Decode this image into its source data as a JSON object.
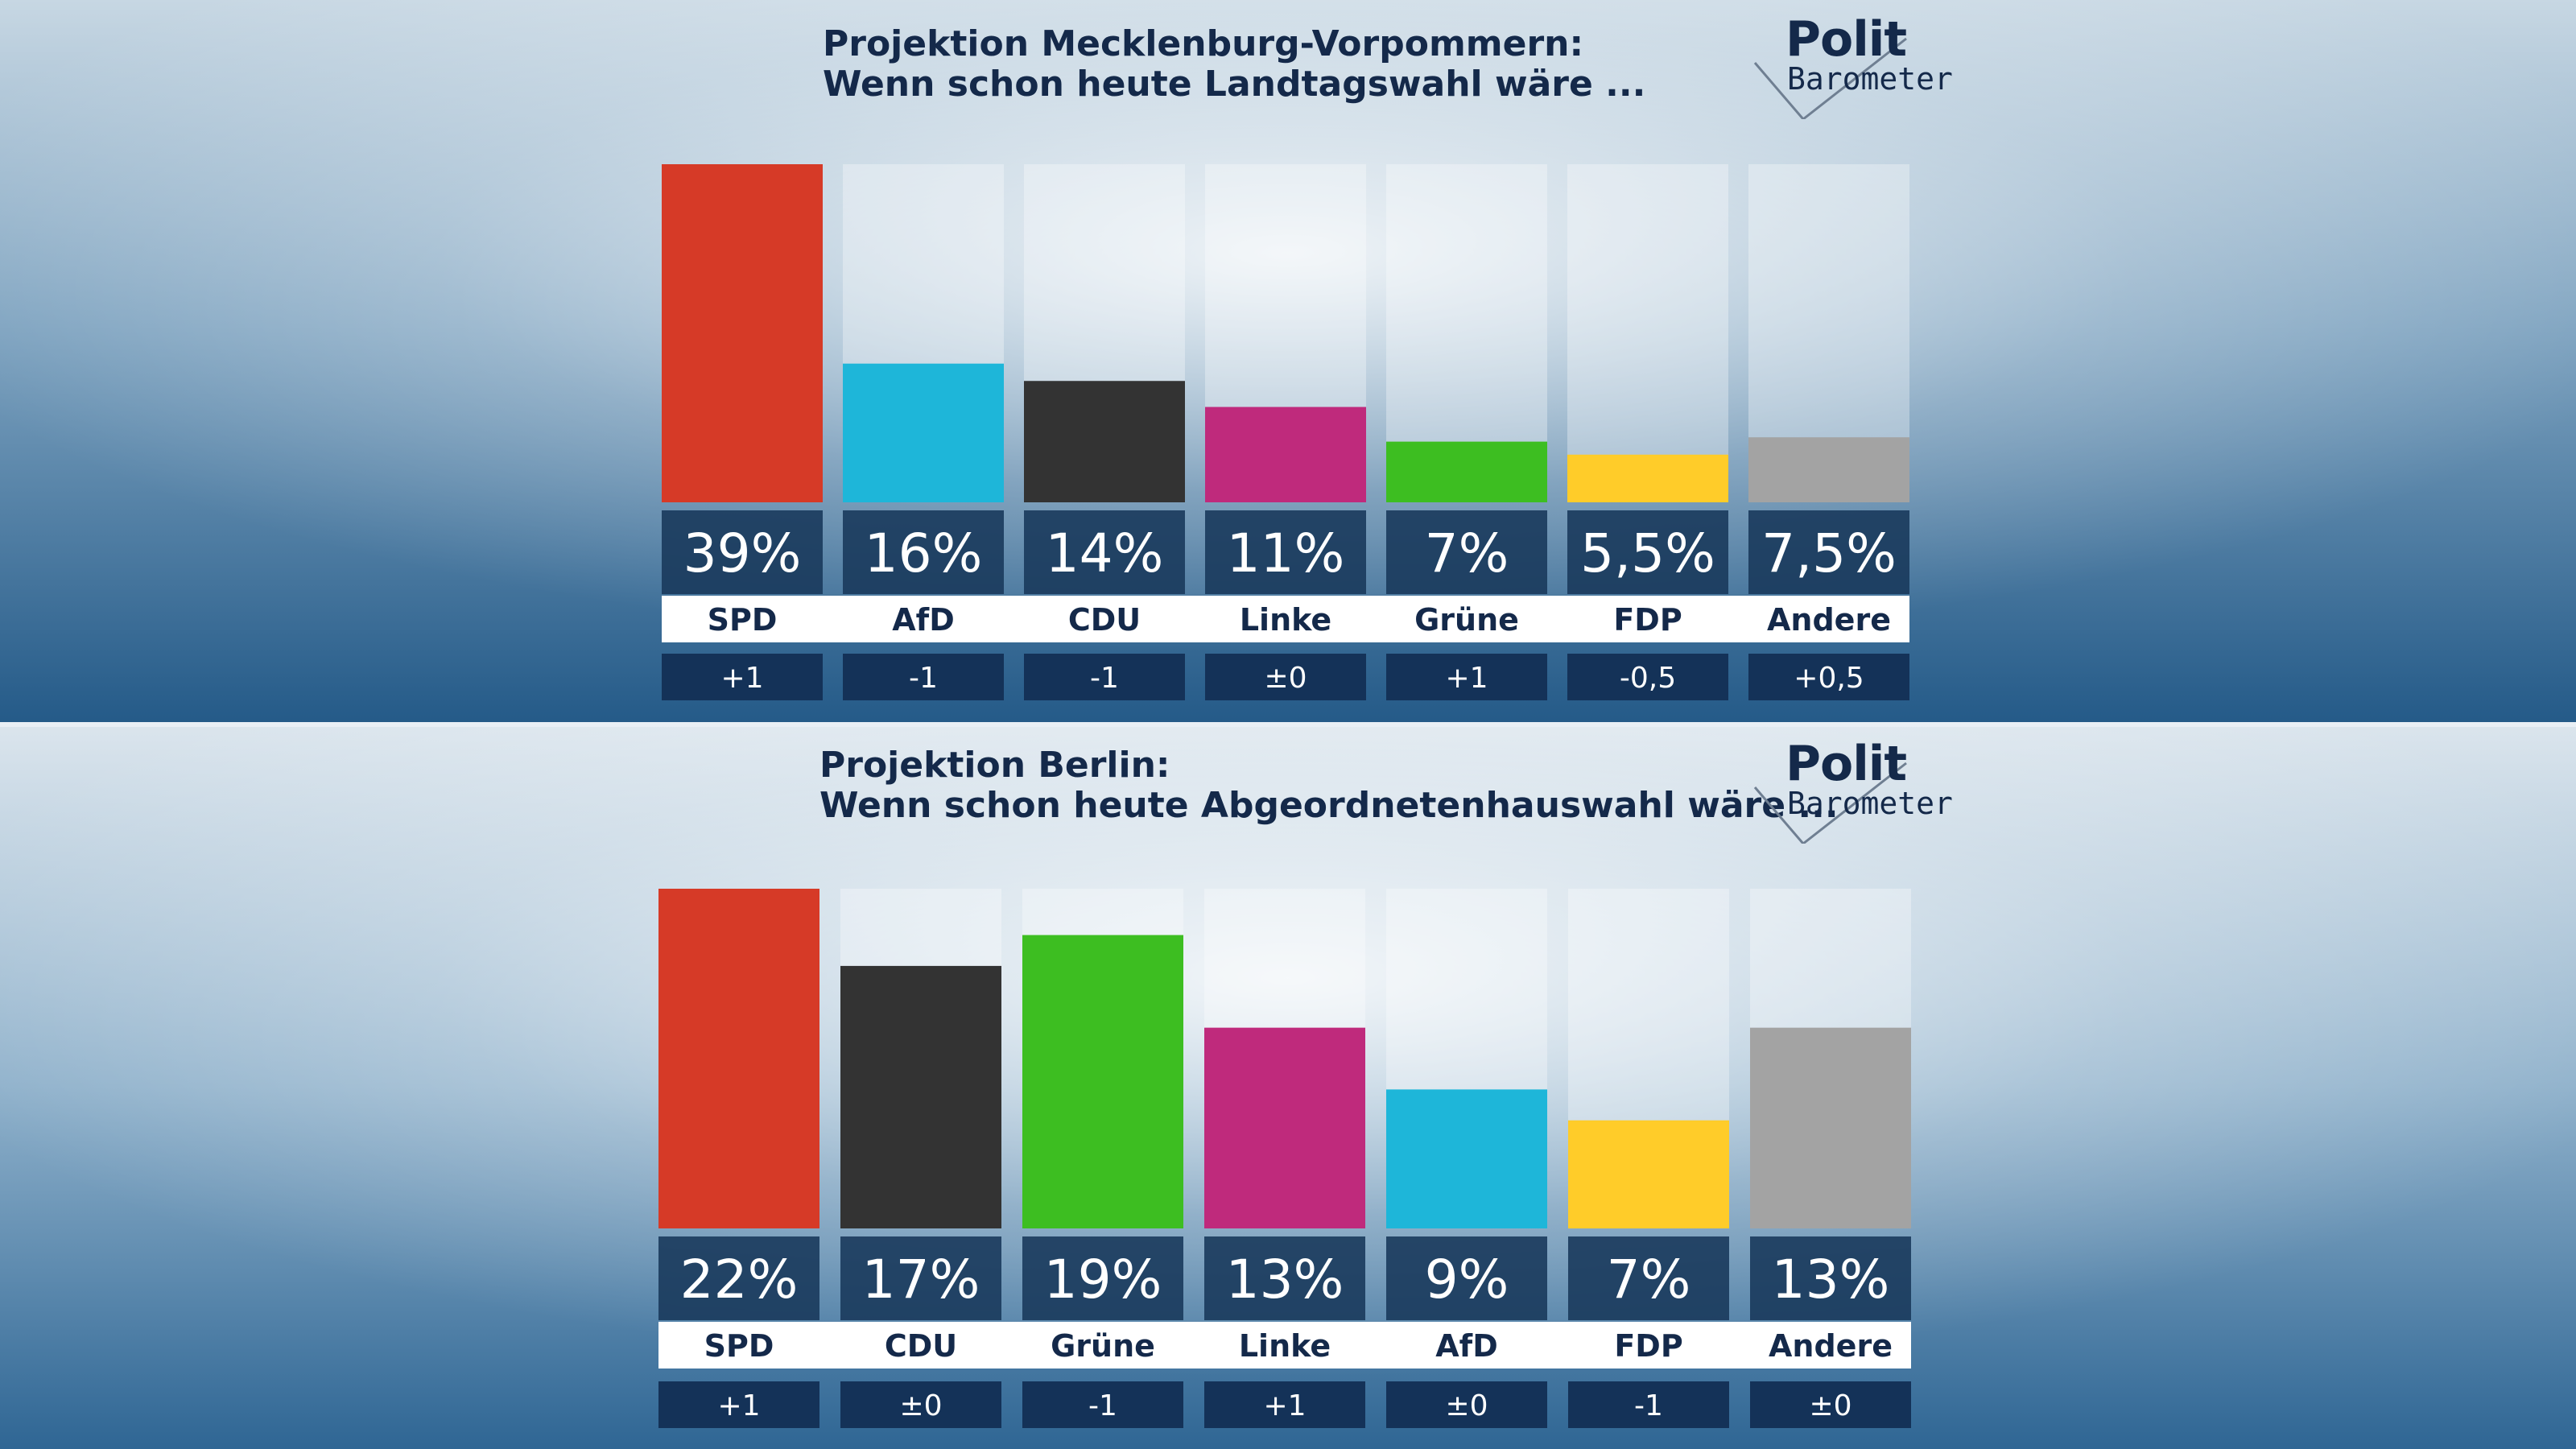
{
  "colors": {
    "SPD": "#d63a27",
    "AfD": "#1eb6d9",
    "CDU": "#333333",
    "Linke": "#bf2a7c",
    "Grüne": "#3dbe21",
    "FDP": "#ffcc29",
    "Andere": "#a3a3a3",
    "label_box": "#1a3a5c",
    "change_box": "#143258"
  },
  "logo": {
    "line1": "Polit",
    "line2": "Barometer"
  },
  "chart_data": [
    {
      "type": "bar",
      "title_line1": "Projektion Mecklenburg-Vorpommern:",
      "title_line2": "Wenn schon heute Landtagswahl wäre ...",
      "categories": [
        "SPD",
        "AfD",
        "CDU",
        "Linke",
        "Grüne",
        "FDP",
        "Andere"
      ],
      "values": [
        39,
        16,
        14,
        11,
        7,
        5.5,
        7.5
      ],
      "value_labels": [
        "39%",
        "16%",
        "14%",
        "11%",
        "7%",
        "5,5%",
        "7,5%"
      ],
      "changes": [
        "+1",
        "-1",
        "-1",
        "±0",
        "+1",
        "-0,5",
        "+0,5"
      ],
      "ylim": [
        0,
        39
      ]
    },
    {
      "type": "bar",
      "title_line1": "Projektion Berlin:",
      "title_line2": "Wenn schon heute Abgeordnetenhauswahl wäre ...",
      "categories": [
        "SPD",
        "CDU",
        "Grüne",
        "Linke",
        "AfD",
        "FDP",
        "Andere"
      ],
      "values": [
        22,
        17,
        19,
        13,
        9,
        7,
        13
      ],
      "value_labels": [
        "22%",
        "17%",
        "19%",
        "13%",
        "9%",
        "7%",
        "13%"
      ],
      "changes": [
        "+1",
        "±0",
        "-1",
        "+1",
        "±0",
        "-1",
        "±0"
      ],
      "ylim": [
        0,
        22
      ]
    }
  ]
}
